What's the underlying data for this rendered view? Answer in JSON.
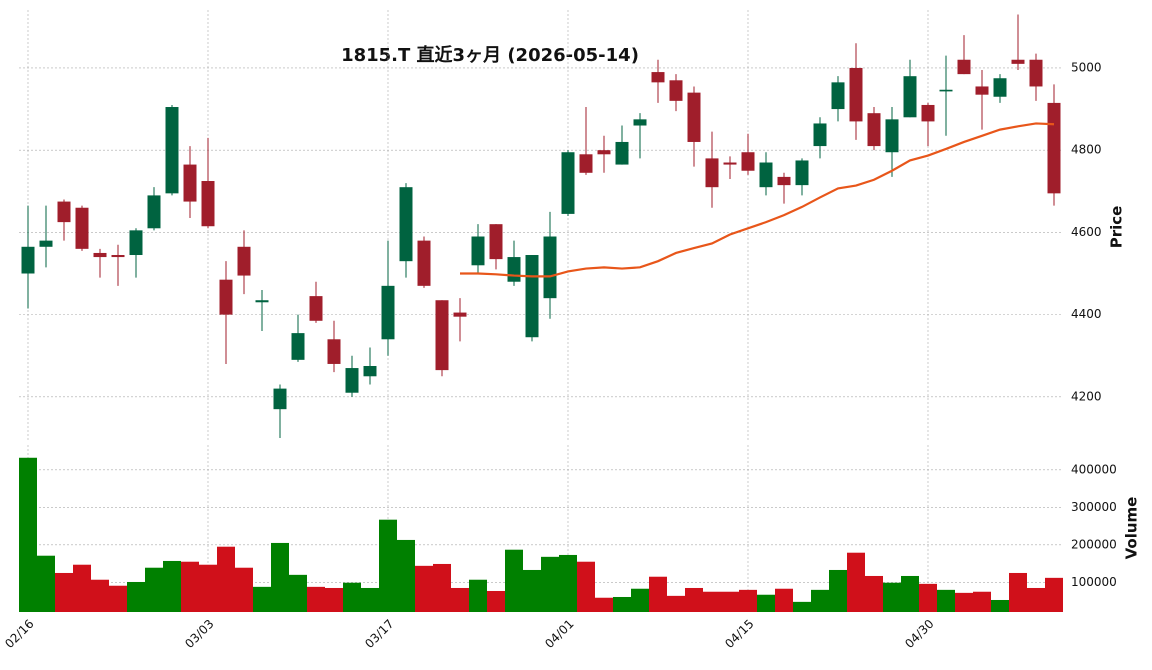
{
  "chart_data": [
    {
      "type": "candlestick",
      "title": "1815.T  直近3ヶ月  (2026-05-14)",
      "ylabel": "Price",
      "categories": [
        "02/16",
        null,
        null,
        null,
        null,
        null,
        null,
        null,
        null,
        null,
        "03/03",
        null,
        null,
        null,
        null,
        null,
        null,
        null,
        null,
        null,
        "03/17",
        null,
        null,
        null,
        null,
        null,
        null,
        null,
        null,
        null,
        "04/01",
        null,
        null,
        null,
        null,
        null,
        null,
        null,
        null,
        null,
        "04/15",
        null,
        null,
        null,
        null,
        null,
        null,
        null,
        null,
        null,
        "04/30",
        null,
        null,
        null,
        null,
        null,
        null,
        null
      ],
      "open": [
        4500,
        4565,
        4675,
        4660,
        4550,
        4545,
        4545,
        4610,
        4695,
        4765,
        4725,
        4485,
        4565,
        4430,
        4170,
        4290,
        4445,
        4340,
        4210,
        4250,
        4340,
        4530,
        4580,
        4435,
        4405,
        4520,
        4620,
        4480,
        4345,
        4440,
        4645,
        4790,
        4800,
        4765,
        4860,
        4990,
        4970,
        4940,
        4780,
        4770,
        4795,
        4710,
        4735,
        4715,
        4810,
        4900,
        5000,
        4890,
        4795,
        4880,
        4910,
        4943,
        5020,
        4955,
        4930,
        5020,
        5020,
        4915
      ],
      "high": [
        4665,
        4665,
        4680,
        4665,
        4560,
        4570,
        4610,
        4710,
        4910,
        4810,
        4830,
        4530,
        4605,
        4460,
        4230,
        4400,
        4480,
        4385,
        4300,
        4320,
        4580,
        4720,
        4590,
        4435,
        4440,
        4620,
        4620,
        4580,
        4545,
        4650,
        4800,
        4905,
        4835,
        4860,
        4890,
        5020,
        4985,
        4955,
        4845,
        4785,
        4840,
        4795,
        4745,
        4780,
        4880,
        4980,
        5060,
        4905,
        4905,
        5020,
        4915,
        5030,
        5080,
        4995,
        4985,
        5130,
        5035,
        4960
      ],
      "low": [
        4415,
        4515,
        4580,
        4555,
        4490,
        4470,
        4490,
        4605,
        4690,
        4635,
        4610,
        4280,
        4450,
        4360,
        4100,
        4285,
        4380,
        4260,
        4200,
        4230,
        4300,
        4490,
        4465,
        4250,
        4335,
        4500,
        4510,
        4470,
        4335,
        4390,
        4640,
        4740,
        4745,
        4765,
        4780,
        4915,
        4895,
        4760,
        4660,
        4730,
        4740,
        4690,
        4670,
        4690,
        4780,
        4870,
        4825,
        4800,
        4735,
        4880,
        4810,
        4835,
        4985,
        4850,
        4915,
        4995,
        4920,
        4665
      ],
      "close": [
        4565,
        4580,
        4625,
        4560,
        4540,
        4540,
        4605,
        4690,
        4905,
        4675,
        4615,
        4400,
        4495,
        4435,
        4220,
        4355,
        4385,
        4280,
        4270,
        4275,
        4470,
        4710,
        4470,
        4265,
        4395,
        4590,
        4535,
        4540,
        4545,
        4590,
        4795,
        4745,
        4790,
        4820,
        4875,
        4965,
        4920,
        4820,
        4710,
        4765,
        4750,
        4770,
        4715,
        4775,
        4865,
        4965,
        4870,
        4810,
        4875,
        4980,
        4870,
        4947,
        4985,
        4935,
        4975,
        5010,
        4955,
        4695
      ],
      "up_color": "#006340",
      "down_color": "#a01e2b",
      "ma": {
        "color": "#e8561a",
        "values": [
          null,
          null,
          null,
          null,
          null,
          null,
          null,
          null,
          null,
          null,
          null,
          null,
          null,
          null,
          null,
          null,
          null,
          null,
          null,
          null,
          null,
          null,
          null,
          null,
          4500,
          4500,
          4498,
          4495,
          4493,
          4493,
          4505,
          4512,
          4515,
          4512,
          4515,
          4530,
          4550,
          4562,
          4573,
          4595,
          4610,
          4625,
          4642,
          4662,
          4685,
          4707,
          4714,
          4728,
          4750,
          4775,
          4787,
          4803,
          4820,
          4835,
          4850,
          4858,
          4865,
          4863
        ]
      },
      "ylim": [
        4095,
        5141
      ],
      "yticks": [
        4200,
        4400,
        4600,
        4800,
        5000
      ],
      "grid": true
    },
    {
      "type": "bar",
      "ylabel": "Volume",
      "values": [
        432000,
        171000,
        125000,
        147000,
        107000,
        91000,
        101000,
        139000,
        157000,
        155000,
        147000,
        195000,
        139000,
        88000,
        205000,
        120000,
        88000,
        85000,
        99000,
        85000,
        267000,
        213000,
        144000,
        149000,
        85000,
        107000,
        77000,
        187000,
        133000,
        168000,
        173000,
        155000,
        59000,
        61000,
        83000,
        115000,
        64000,
        85000,
        75000,
        75000,
        80000,
        67000,
        83000,
        48000,
        80000,
        133000,
        179000,
        117000,
        99000,
        117000,
        96000,
        80000,
        72000,
        75000,
        53000,
        125000,
        85000,
        112000
      ],
      "up_color": "#008000",
      "down_color": "#d0101a",
      "ylim": [
        21000,
        466000
      ],
      "yticks": [
        100000,
        200000,
        300000,
        400000
      ],
      "grid": true
    }
  ]
}
